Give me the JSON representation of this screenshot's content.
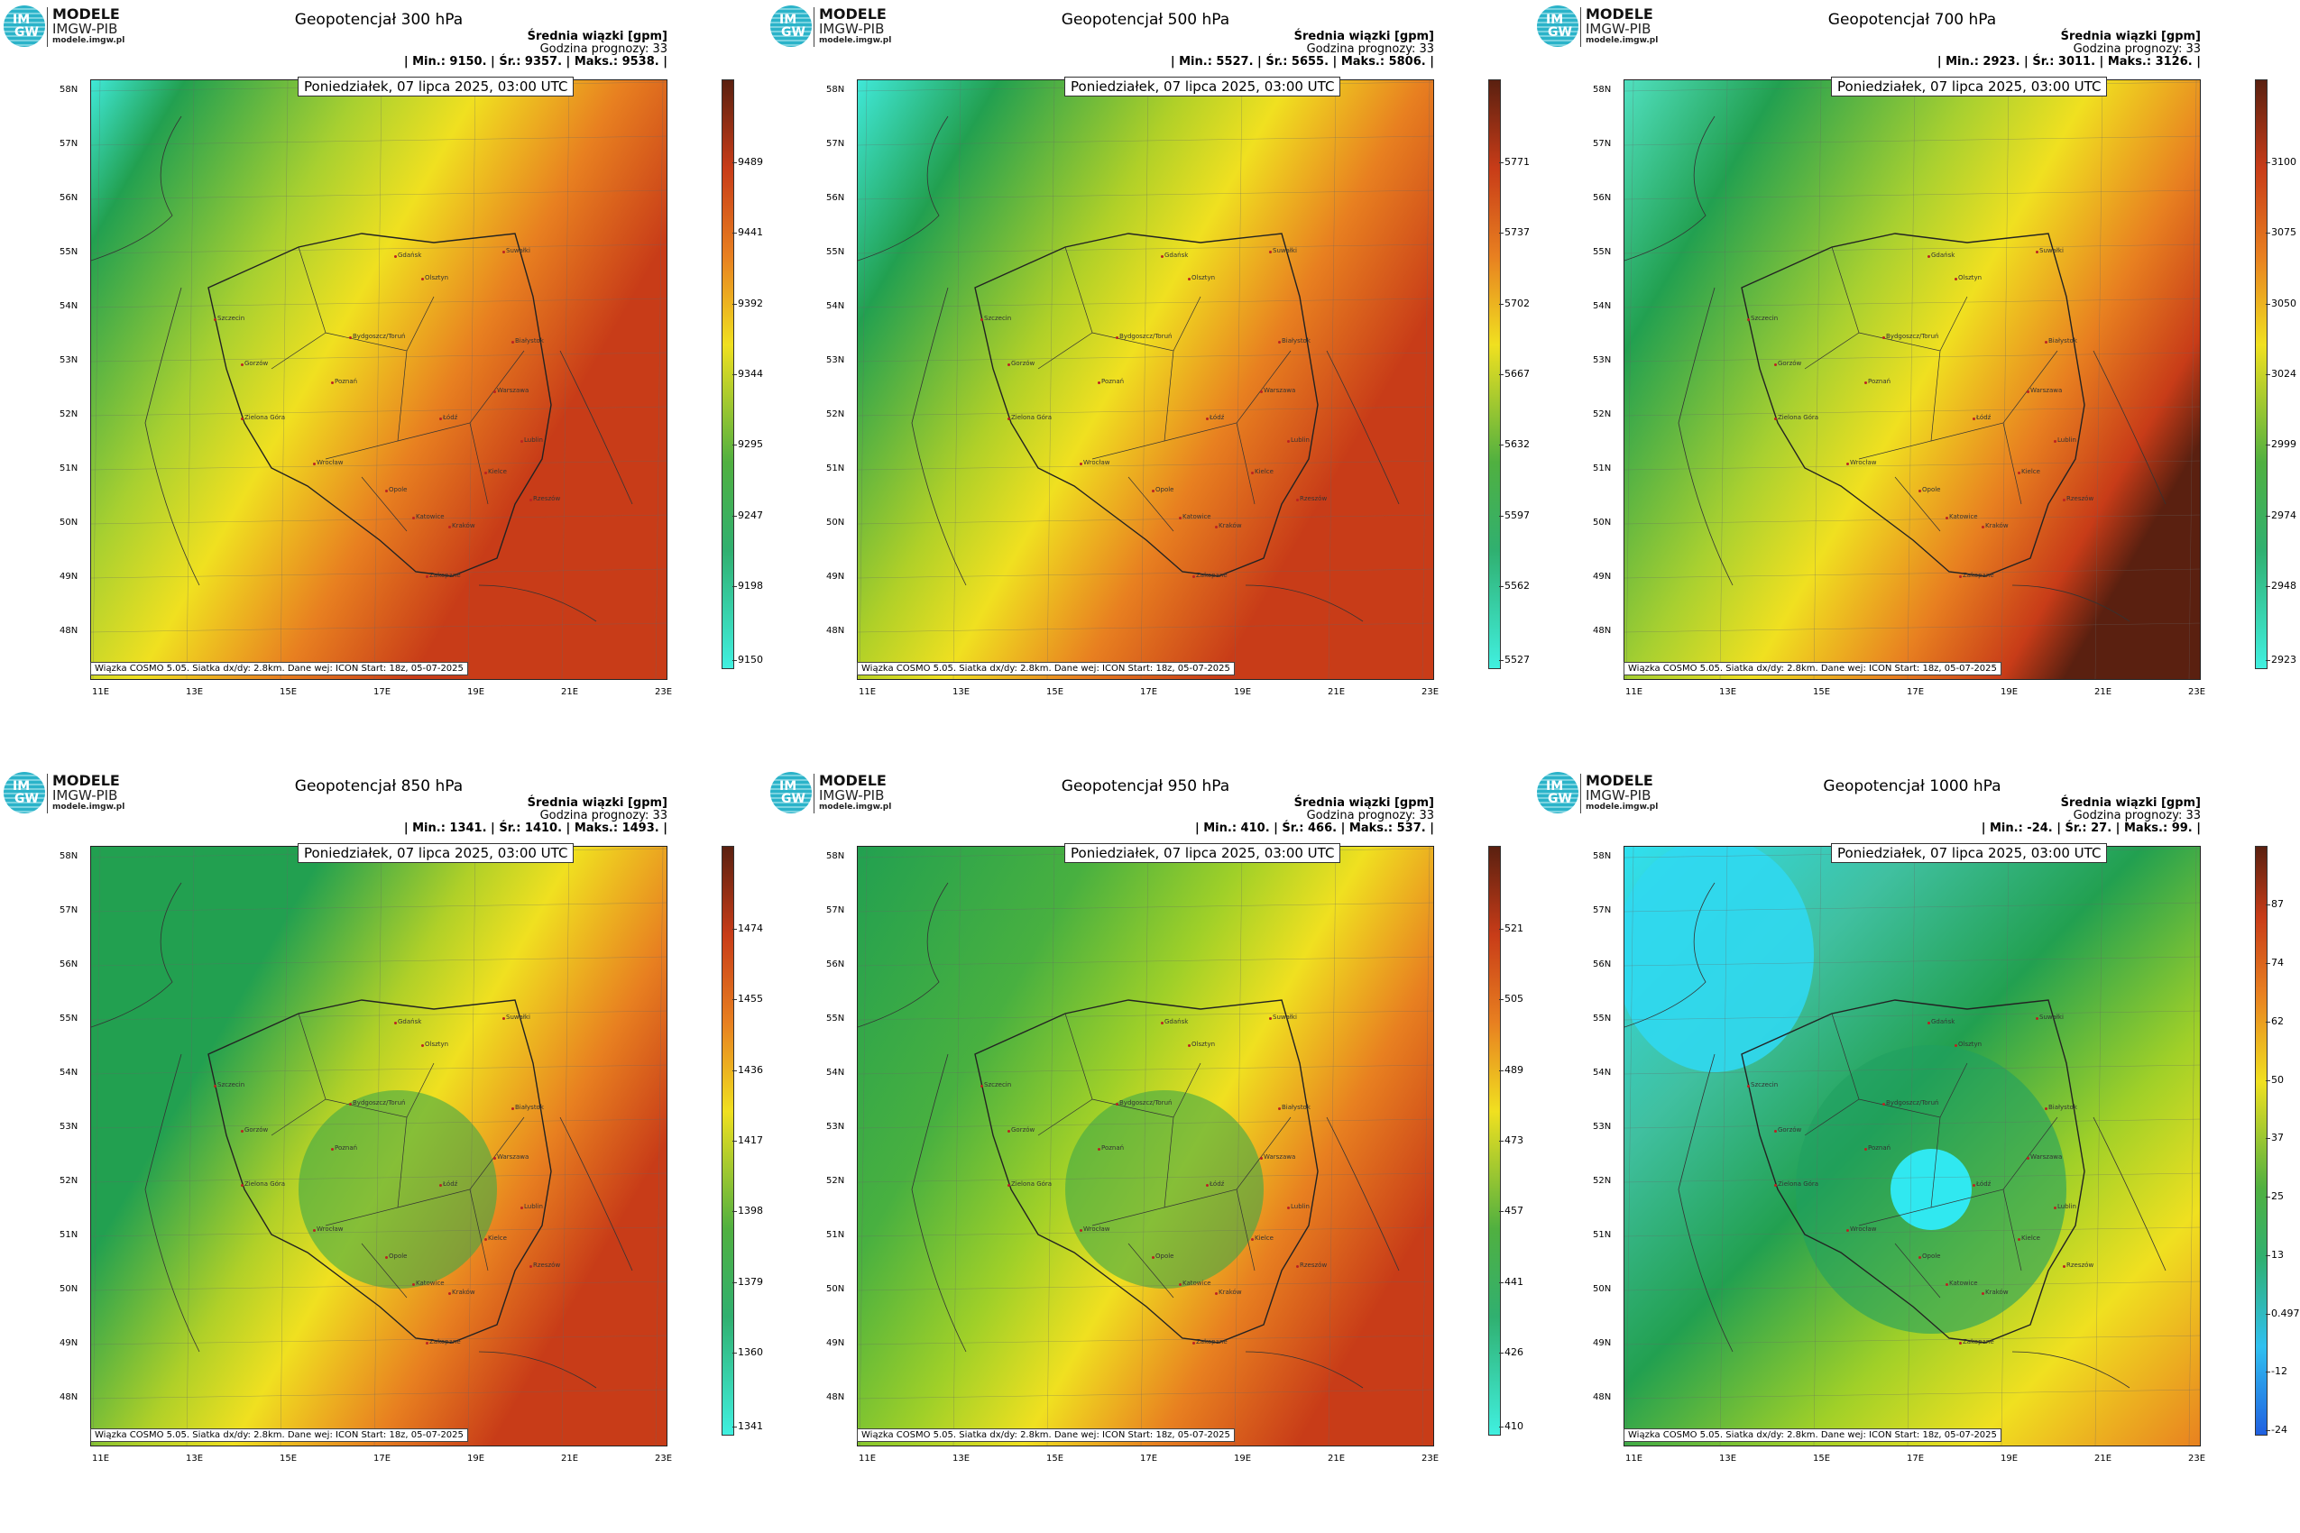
{
  "logo": {
    "line1": "MODELE",
    "line2": "IMGW-PIB",
    "line3": "modele.imgw.pl",
    "mark_top": "IM",
    "mark_bottom": "GW"
  },
  "common": {
    "units_label": "Średnia wiązki [gpm]",
    "forecast_hour": "Godzina prognozy: 33",
    "date": "Poniedziałek, 07 lipca 2025, 03:00 UTC",
    "footer": "Wiązka COSMO 5.05. Siatka dx/dy: 2.8km. Dane wej: ICON Start: 18z, 05-07-2025",
    "lat_labels": [
      "58N",
      "57N",
      "56N",
      "55N",
      "54N",
      "53N",
      "52N",
      "51N",
      "50N",
      "49N",
      "48N"
    ],
    "lon_labels": [
      "11E",
      "13E",
      "15E",
      "17E",
      "19E",
      "21E",
      "23E"
    ],
    "cities": [
      "Gdańsk",
      "Olsztyn",
      "Suwałki",
      "Szczecin",
      "Bydgoszcz/Toruń",
      "Białystok",
      "Gorzów",
      "Poznań",
      "Warszawa",
      "Zielona Góra",
      "Łódź",
      "Lublin",
      "Wrocław",
      "Kielce",
      "Opole",
      "Rzeszów",
      "Katowice",
      "Kraków",
      "Zakopane"
    ],
    "colors": {
      "low": "#40e8d8",
      "green": "#22a050",
      "yellow": "#f0e020",
      "orange": "#e88020",
      "red": "#c83c18",
      "brown": "#5a2010"
    }
  },
  "panels": [
    {
      "title": "Geopotencjał 300 hPa",
      "stats": "| Min.:    9150. | Śr.:    9357. | Maks.:    9538. |",
      "min": "9150.",
      "mean": "9357.",
      "max": "9538.",
      "colorbar_ticks": [
        "9489",
        "9441",
        "9392",
        "9344",
        "9295",
        "9247",
        "9198",
        "9150"
      ]
    },
    {
      "title": "Geopotencjał 500 hPa",
      "stats": "| Min.:    5527. | Śr.:    5655. | Maks.:    5806. |",
      "min": "5527.",
      "mean": "5655.",
      "max": "5806.",
      "colorbar_ticks": [
        "5771",
        "5737",
        "5702",
        "5667",
        "5632",
        "5597",
        "5562",
        "5527"
      ]
    },
    {
      "title": "Geopotencjał 700 hPa",
      "stats": "| Min.:    2923. | Śr.:    3011. | Maks.:    3126. |",
      "min": "2923.",
      "mean": "3011.",
      "max": "3126.",
      "colorbar_ticks": [
        "3100",
        "3075",
        "3050",
        "3024",
        "2999",
        "2974",
        "2948",
        "2923"
      ]
    },
    {
      "title": "Geopotencjał 850 hPa",
      "stats": "| Min.:    1341. | Śr.:    1410. | Maks.:    1493. |",
      "min": "1341.",
      "mean": "1410.",
      "max": "1493.",
      "colorbar_ticks": [
        "1474",
        "1455",
        "1436",
        "1417",
        "1398",
        "1379",
        "1360",
        "1341"
      ]
    },
    {
      "title": "Geopotencjał 950 hPa",
      "stats": "| Min.:    410. | Śr.:    466. | Maks.:    537. |",
      "min": "410.",
      "mean": "466.",
      "max": "537.",
      "colorbar_ticks": [
        "521",
        "505",
        "489",
        "473",
        "457",
        "441",
        "426",
        "410"
      ]
    },
    {
      "title": "Geopotencjał 1000 hPa",
      "stats": "| Min.:    -24. | Śr.:    27. | Maks.:    99. |",
      "min": "-24.",
      "mean": "27.",
      "max": "99.",
      "colorbar_ticks": [
        "87",
        "74",
        "62",
        "50",
        "37",
        "25",
        "13",
        "0.497",
        "-12",
        "-24"
      ]
    }
  ]
}
